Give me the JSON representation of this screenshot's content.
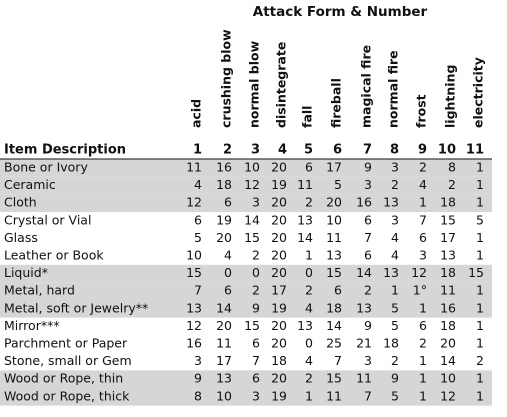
{
  "title": "Attack Form & Number",
  "columns": [
    {
      "label": "acid",
      "number": 1
    },
    {
      "label": "crushing blow",
      "number": 2
    },
    {
      "label": "normal blow",
      "number": 3
    },
    {
      "label": "disintegrate",
      "number": 4
    },
    {
      "label": "fall",
      "number": 5
    },
    {
      "label": "fireball",
      "number": 6
    },
    {
      "label": "magical fire",
      "number": 7
    },
    {
      "label": "normal fire",
      "number": 8
    },
    {
      "label": "frost",
      "number": 9
    },
    {
      "label": "lightning",
      "number": 10
    },
    {
      "label": "electricity",
      "number": 11
    }
  ],
  "table": {
    "header": "Item Description",
    "rows": [
      {
        "item": "Bone or Ivory",
        "values": [
          11,
          16,
          10,
          20,
          6,
          17,
          9,
          3,
          2,
          8,
          1
        ]
      },
      {
        "item": "Ceramic",
        "values": [
          4,
          18,
          12,
          19,
          11,
          5,
          3,
          2,
          4,
          2,
          1
        ]
      },
      {
        "item": "Cloth",
        "values": [
          12,
          6,
          3,
          20,
          2,
          20,
          16,
          13,
          1,
          18,
          1
        ]
      },
      {
        "item": "Crystal or Vial",
        "values": [
          6,
          19,
          14,
          20,
          13,
          10,
          6,
          3,
          7,
          15,
          5
        ]
      },
      {
        "item": "Glass",
        "values": [
          5,
          20,
          15,
          20,
          14,
          11,
          7,
          4,
          6,
          17,
          1
        ]
      },
      {
        "item": "Leather or Book",
        "values": [
          10,
          4,
          2,
          20,
          1,
          13,
          6,
          4,
          3,
          13,
          1
        ]
      },
      {
        "item": "Liquid*",
        "values": [
          15,
          0,
          0,
          20,
          0,
          15,
          14,
          13,
          12,
          18,
          15
        ]
      },
      {
        "item": "Metal, hard",
        "values": [
          7,
          6,
          2,
          17,
          2,
          6,
          2,
          1,
          "1°",
          11,
          1
        ]
      },
      {
        "item": "Metal, soft or Jewelry**",
        "values": [
          13,
          14,
          9,
          19,
          4,
          18,
          13,
          5,
          1,
          16,
          1
        ]
      },
      {
        "item": "Mirror***",
        "values": [
          12,
          20,
          15,
          20,
          13,
          14,
          9,
          5,
          6,
          18,
          1
        ]
      },
      {
        "item": "Parchment or Paper",
        "values": [
          16,
          11,
          6,
          20,
          0,
          25,
          21,
          18,
          2,
          20,
          1
        ]
      },
      {
        "item": "Stone, small or Gem",
        "values": [
          3,
          17,
          7,
          18,
          4,
          7,
          3,
          2,
          1,
          14,
          2
        ]
      },
      {
        "item": "Wood or Rope, thin",
        "values": [
          9,
          13,
          6,
          20,
          2,
          15,
          11,
          9,
          1,
          10,
          1
        ]
      },
      {
        "item": "Wood or Rope, thick",
        "values": [
          8,
          10,
          3,
          19,
          1,
          11,
          7,
          5,
          1,
          12,
          1
        ]
      }
    ]
  }
}
